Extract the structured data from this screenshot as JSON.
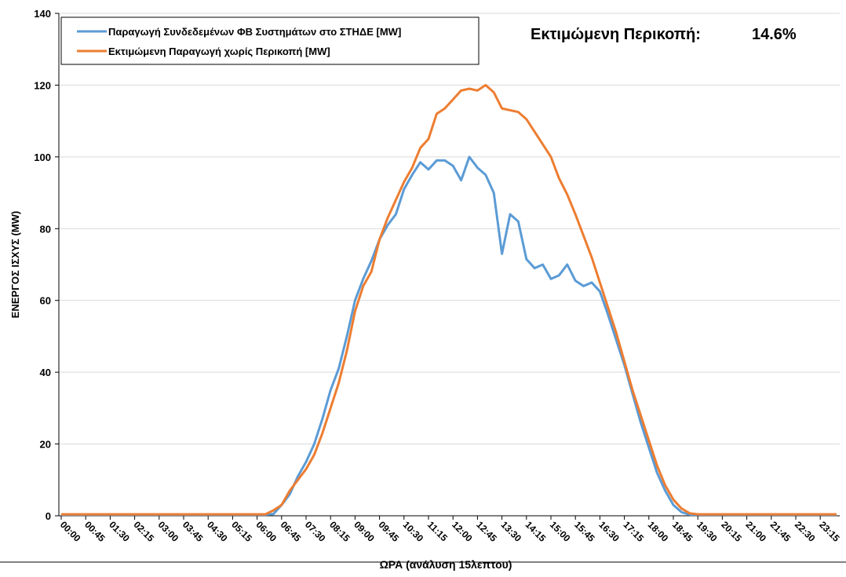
{
  "chart_data": {
    "type": "line",
    "annotations": [
      "Εκτιμώμενη Περικοπή:",
      "14.6%"
    ],
    "x_label": "ΩΡΑ (ανάλυση 15λεπτου)",
    "y_label": "ΕΝΕΡΓΟΣ ΙΣΧΥΣ (MW)",
    "categories": [
      "00:00",
      null,
      null,
      "00:45",
      null,
      null,
      "01:30",
      null,
      null,
      "02:15",
      null,
      null,
      "03:00",
      null,
      null,
      "03:45",
      null,
      null,
      "04:30",
      null,
      null,
      "05:15",
      null,
      null,
      "06:00",
      null,
      null,
      "06:45",
      null,
      null,
      "07:30",
      null,
      null,
      "08:15",
      null,
      null,
      "09:00",
      null,
      null,
      "09:45",
      null,
      null,
      "10:30",
      null,
      null,
      "11:15",
      null,
      null,
      "12:00",
      null,
      null,
      "12:45",
      null,
      null,
      "13:30",
      null,
      null,
      "14:15",
      null,
      null,
      "15:00",
      null,
      null,
      "15:45",
      null,
      null,
      "16:30",
      null,
      null,
      "17:15",
      null,
      null,
      "18:00",
      null,
      null,
      "18:45",
      null,
      null,
      "19:30",
      null,
      null,
      "20:15",
      null,
      null,
      "21:00",
      null,
      null,
      "21:45",
      null,
      null,
      "22:30",
      null,
      null,
      "23:15",
      null,
      null
    ],
    "series": [
      {
        "name": "Παραγωγή Συνδεδεμένων ΦΒ Συστημάτων στο ΣΤΗΔΕ [MW]",
        "color": "#5b9bd5",
        "values": [
          0.3,
          0.3,
          0.3,
          0.3,
          0.3,
          0.3,
          0.3,
          0.3,
          0.3,
          0.3,
          0.3,
          0.3,
          0.3,
          0.3,
          0.3,
          0.3,
          0.3,
          0.3,
          0.3,
          0.3,
          0.3,
          0.3,
          0.3,
          0.3,
          0.3,
          0.3,
          0.5,
          3,
          6,
          11,
          15,
          20,
          27,
          35,
          41,
          50,
          60,
          66,
          71,
          77,
          81,
          84,
          91,
          95,
          98.5,
          96.5,
          99,
          99,
          97.5,
          93.5,
          100,
          97,
          95,
          90,
          73,
          84,
          82,
          71.5,
          69,
          70,
          66,
          67,
          70,
          65.5,
          64,
          65,
          62.5,
          56,
          49,
          42,
          34,
          26,
          19,
          12,
          7,
          3,
          1,
          0.3,
          0.3,
          0.3,
          0.3,
          0.3,
          0.3,
          0.3,
          0.3,
          0.3,
          0.3,
          0.3,
          0.3,
          0.3,
          0.3,
          0.3,
          0.3,
          0.3,
          0.3,
          0.3
        ]
      },
      {
        "name": "Εκτιμώμενη Παραγωγή χωρίς Περικοπή [MW]",
        "color": "#ed7d31",
        "values": [
          0.4,
          0.4,
          0.4,
          0.4,
          0.4,
          0.4,
          0.4,
          0.4,
          0.4,
          0.4,
          0.4,
          0.4,
          0.4,
          0.4,
          0.4,
          0.4,
          0.4,
          0.4,
          0.4,
          0.4,
          0.4,
          0.4,
          0.4,
          0.4,
          0.4,
          0.4,
          1.5,
          3,
          7,
          10,
          13,
          17,
          23,
          30,
          37,
          46,
          57,
          64,
          68,
          77,
          83,
          88,
          93,
          97,
          102.5,
          105,
          112,
          113.5,
          116,
          118.5,
          119,
          118.5,
          120,
          118,
          113.5,
          113,
          112.5,
          110.5,
          107,
          103.5,
          100,
          94,
          89.5,
          84,
          78,
          72,
          65,
          58,
          51,
          43,
          35,
          28,
          21,
          14,
          8.5,
          4.5,
          2,
          0.7,
          0.4,
          0.4,
          0.4,
          0.4,
          0.4,
          0.4,
          0.4,
          0.4,
          0.4,
          0.4,
          0.4,
          0.4,
          0.4,
          0.4,
          0.4,
          0.4,
          0.4,
          0.4
        ]
      }
    ],
    "ylim": [
      0,
      140
    ],
    "yticks": [
      0,
      20,
      40,
      60,
      80,
      100,
      120,
      140
    ],
    "grid": true,
    "legend": "upper left"
  }
}
